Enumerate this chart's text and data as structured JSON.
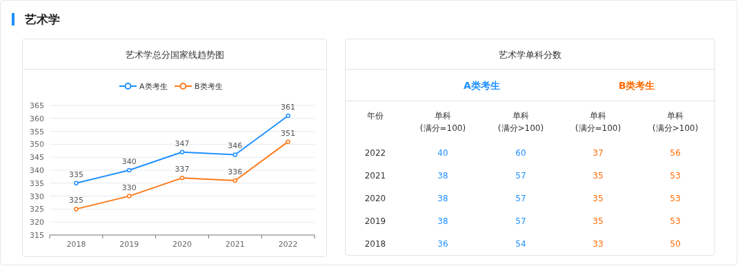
{
  "chart_data": [
    {
      "type": "line",
      "title": "艺术学总分国家线趋势图",
      "annotations": [
        "艺术学"
      ],
      "categories": [
        "2018",
        "2019",
        "2020",
        "2021",
        "2022"
      ],
      "series": [
        {
          "name": "A类考生",
          "color": "#1e90ff",
          "values": [
            335,
            340,
            347,
            346,
            361
          ]
        },
        {
          "name": "B类考生",
          "color": "#ff7a1a",
          "values": [
            325,
            330,
            337,
            336,
            351
          ]
        }
      ],
      "ylim": [
        315,
        365
      ],
      "yticks": [
        315,
        320,
        325,
        330,
        335,
        340,
        345,
        350,
        355,
        360,
        365
      ],
      "grid": "y",
      "legend": "top",
      "marker": "circle",
      "data_labels": true
    },
    {
      "type": "heatmap",
      "title": "艺术学单科分数",
      "ylabel": "年份",
      "annotations": [
        "A类考生",
        "B类考生"
      ],
      "categories": [
        "单科\n(满分=100)",
        "单科\n(满分>100)",
        "单科\n(满分=100)",
        "单科\n(满分>100)"
      ],
      "colors": [
        "#1e90ff",
        "#1e90ff",
        "#ff6a00",
        "#ff6a00"
      ],
      "y_categories": [
        "2022",
        "2021",
        "2020",
        "2019",
        "2018"
      ],
      "cells": [
        [
          40,
          60,
          37,
          56
        ],
        [
          38,
          57,
          35,
          53
        ],
        [
          38,
          57,
          35,
          53
        ],
        [
          38,
          57,
          35,
          53
        ],
        [
          36,
          54,
          33,
          50
        ]
      ],
      "data_labels": true
    }
  ]
}
